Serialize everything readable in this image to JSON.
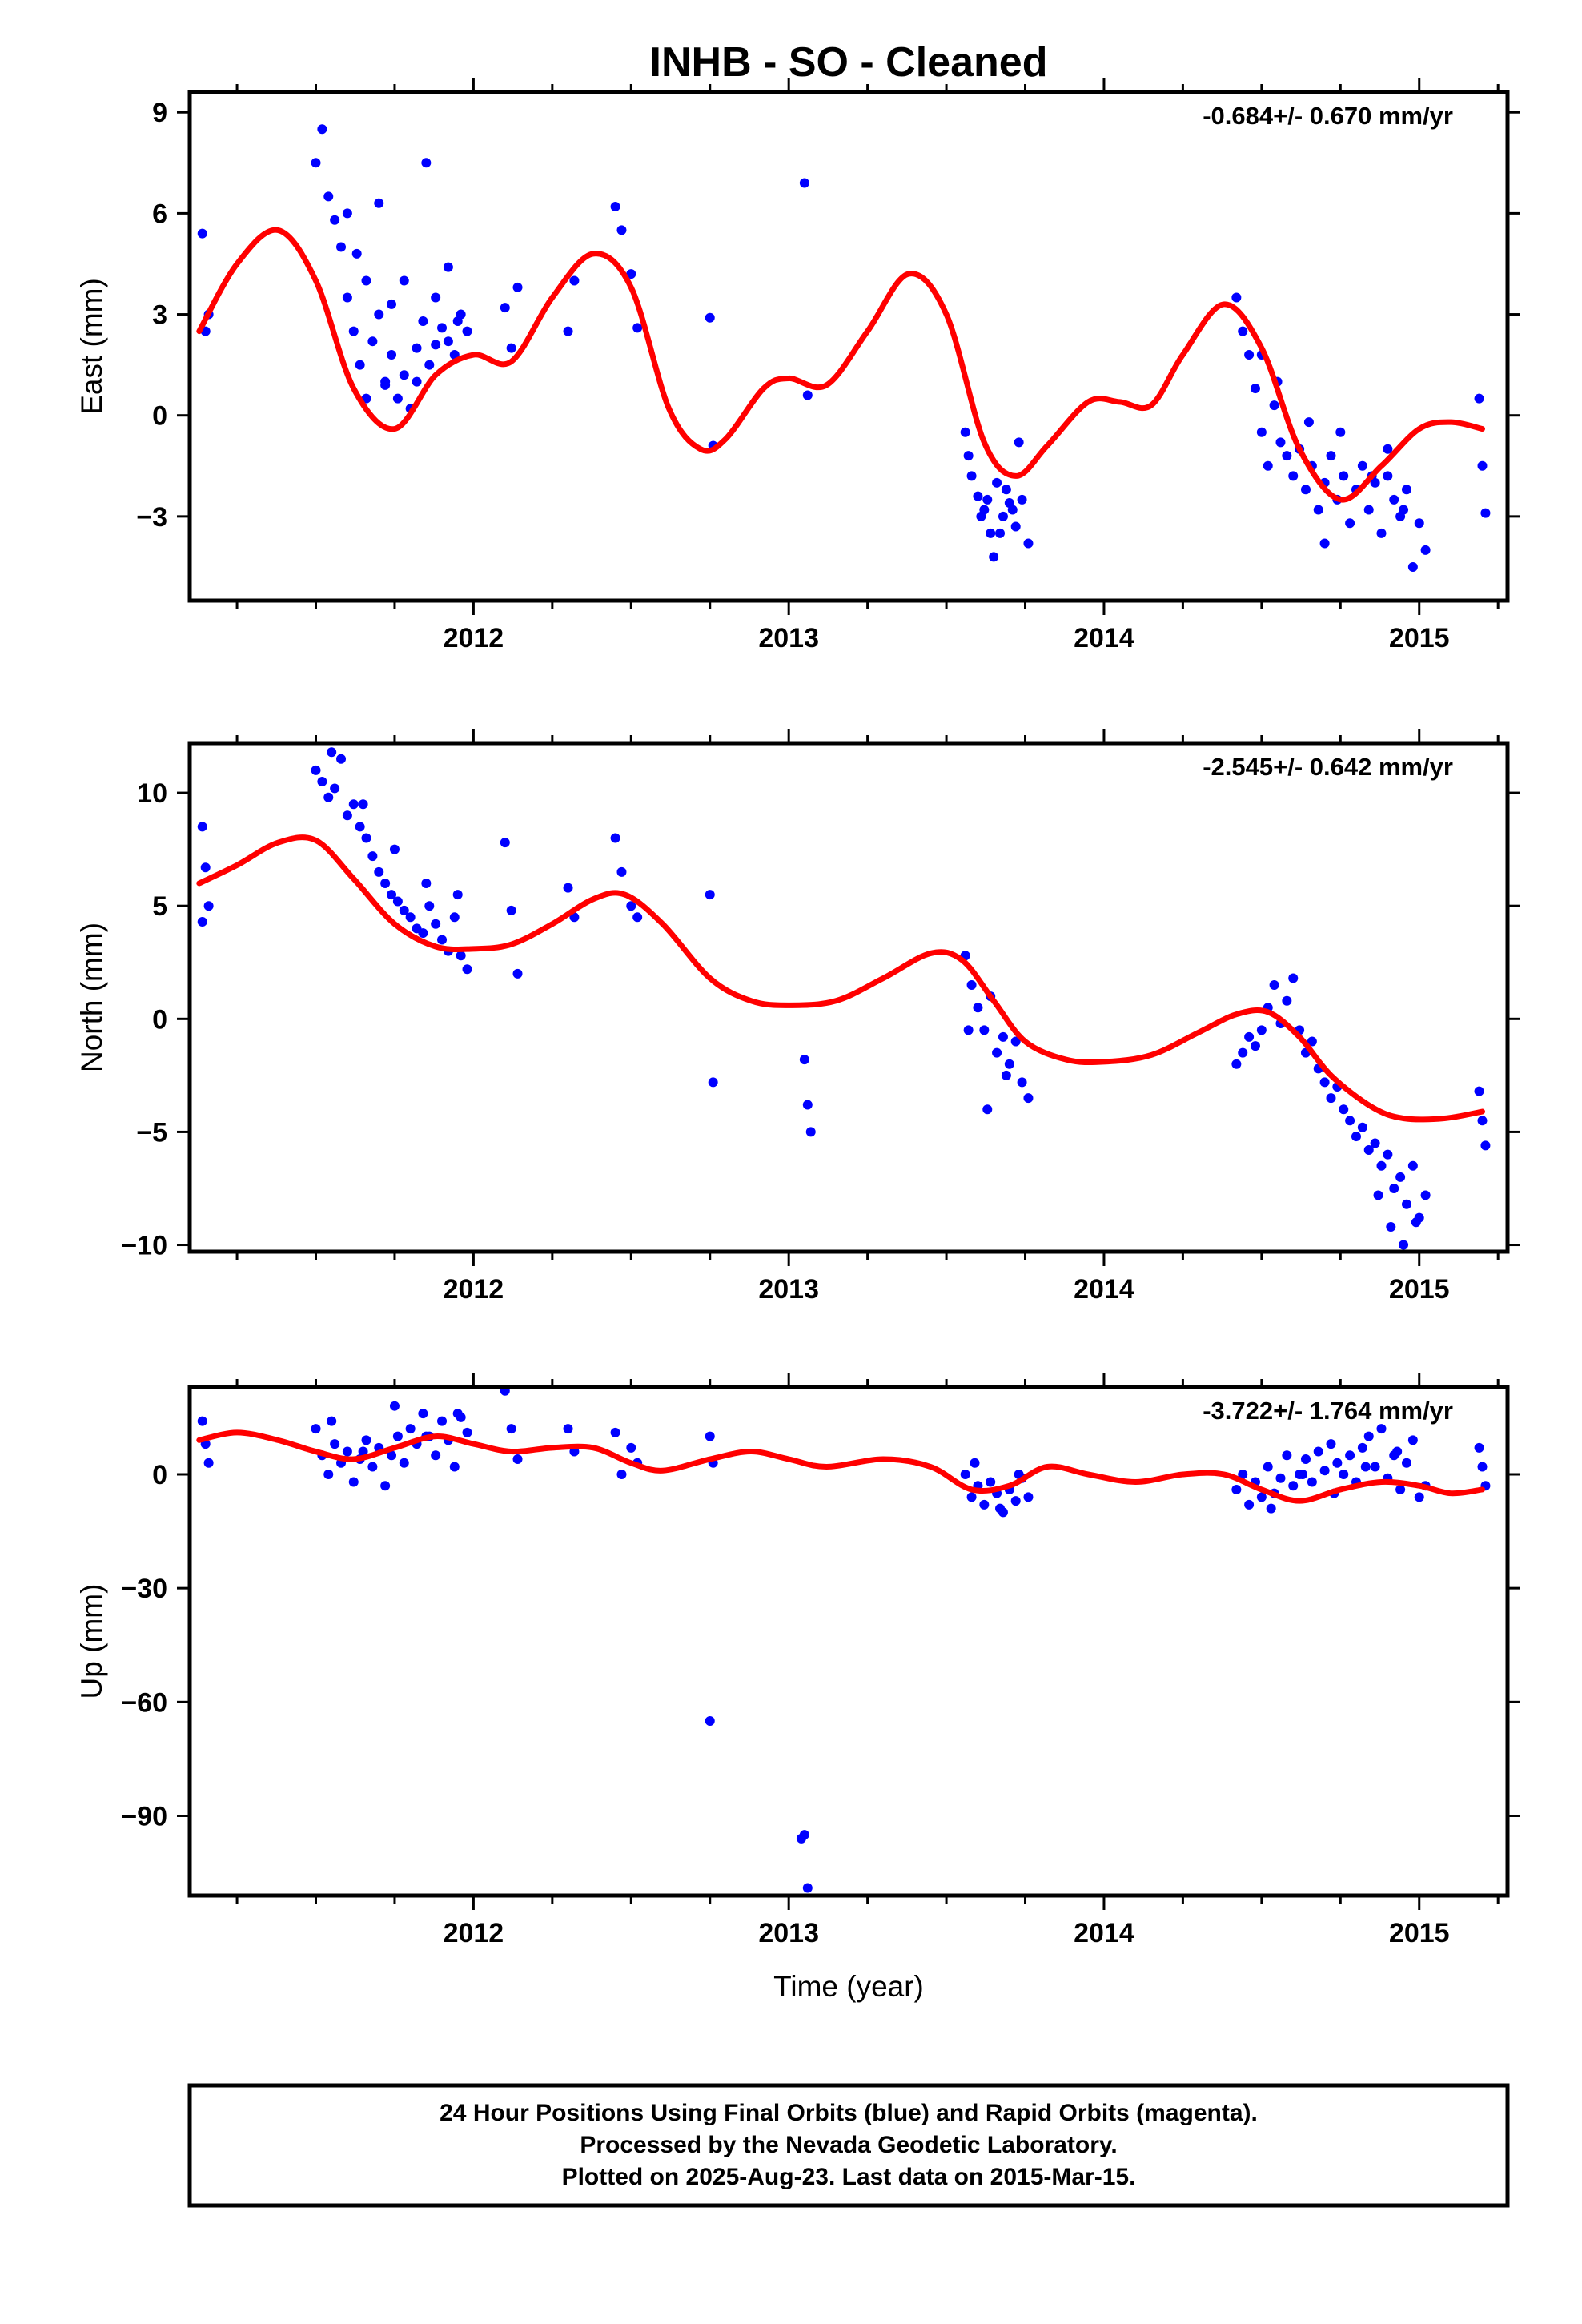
{
  "title": "INHB  - SO - Cleaned",
  "colors": {
    "data": "#0000ff",
    "model": "#ff0000",
    "frame": "#000000"
  },
  "xlabel": "Time (year)",
  "footer": [
    "24 Hour Positions Using Final Orbits (blue) and Rapid Orbits (magenta).",
    "Processed by the Nevada Geodetic Laboratory.",
    "Plotted on 2025-Aug-23. Last data on 2015-Mar-15."
  ],
  "chart_data": [
    {
      "type": "scatter",
      "ylabel": "East (mm)",
      "rate": "-0.684+/- 0.670 mm/yr",
      "xlim": [
        2011.1,
        2015.28
      ],
      "ylim": [
        -5.5,
        9.6
      ],
      "xticks": [
        2012,
        2013,
        2014,
        2015
      ],
      "yticks": [
        -3,
        0,
        3,
        6,
        9
      ],
      "ytick_labels": [
        "−3",
        "0",
        "3",
        "6",
        "9"
      ],
      "model": {
        "x": [
          2011.13,
          2011.25,
          2011.38,
          2011.5,
          2011.62,
          2011.75,
          2011.88,
          2012.0,
          2012.12,
          2012.25,
          2012.38,
          2012.5,
          2012.62,
          2012.72,
          2012.8,
          2012.92,
          2013.0,
          2013.12,
          2013.25,
          2013.38,
          2013.5,
          2013.62,
          2013.72,
          2013.82,
          2013.95,
          2014.05,
          2014.15,
          2014.25,
          2014.38,
          2014.5,
          2014.62,
          2014.75,
          2014.88,
          2015.0,
          2015.1,
          2015.2
        ],
        "y": [
          2.5,
          4.5,
          5.5,
          4.0,
          0.8,
          -0.4,
          1.2,
          1.8,
          1.6,
          3.5,
          4.8,
          3.8,
          0.2,
          -1.0,
          -0.7,
          0.8,
          1.1,
          0.9,
          2.5,
          4.2,
          3.0,
          -0.8,
          -1.8,
          -0.9,
          0.4,
          0.4,
          0.3,
          1.8,
          3.3,
          2.0,
          -1.0,
          -2.5,
          -1.5,
          -0.4,
          -0.2,
          -0.4
        ]
      },
      "points": {
        "x": [
          2011.14,
          2011.15,
          2011.16,
          2011.5,
          2011.52,
          2011.54,
          2011.56,
          2011.58,
          2011.6,
          2011.62,
          2011.64,
          2011.66,
          2011.68,
          2011.7,
          2011.72,
          2011.74,
          2011.76,
          2011.78,
          2011.8,
          2011.82,
          2011.84,
          2011.86,
          2011.88,
          2011.9,
          2011.92,
          2011.94,
          2011.96,
          2011.98,
          2011.72,
          2011.78,
          2011.85,
          2011.63,
          2011.7,
          2011.92,
          2011.6,
          2011.66,
          2011.74,
          2011.82,
          2011.88,
          2011.95,
          2012.1,
          2012.12,
          2012.14,
          2012.3,
          2012.32,
          2012.45,
          2012.47,
          2012.5,
          2012.52,
          2012.75,
          2012.76,
          2013.05,
          2013.06,
          2013.56,
          2013.58,
          2013.6,
          2013.62,
          2013.64,
          2013.66,
          2013.68,
          2013.7,
          2013.72,
          2013.74,
          2013.76,
          2013.57,
          2013.61,
          2013.65,
          2013.69,
          2013.73,
          2013.63,
          2013.67,
          2013.71,
          2014.42,
          2014.44,
          2014.46,
          2014.48,
          2014.5,
          2014.52,
          2014.54,
          2014.56,
          2014.58,
          2014.6,
          2014.62,
          2014.64,
          2014.66,
          2014.68,
          2014.7,
          2014.72,
          2014.74,
          2014.76,
          2014.78,
          2014.8,
          2014.82,
          2014.84,
          2014.86,
          2014.88,
          2014.9,
          2014.92,
          2014.94,
          2014.96,
          2014.98,
          2015.0,
          2015.02,
          2014.55,
          2014.65,
          2014.75,
          2014.85,
          2014.95,
          2014.5,
          2014.7,
          2014.9,
          2015.19,
          2015.2,
          2015.21
        ],
        "y": [
          5.4,
          2.5,
          3.0,
          7.5,
          8.5,
          6.5,
          5.8,
          5.0,
          3.5,
          2.5,
          1.5,
          0.5,
          2.2,
          3.0,
          1.0,
          1.8,
          0.5,
          1.2,
          0.2,
          2.0,
          2.8,
          1.5,
          3.5,
          2.6,
          2.2,
          1.8,
          3.0,
          2.5,
          0.9,
          4.0,
          7.5,
          4.8,
          6.3,
          4.4,
          6.0,
          4.0,
          3.3,
          1.0,
          2.1,
          2.8,
          3.2,
          2.0,
          3.8,
          2.5,
          4.0,
          6.2,
          5.5,
          4.2,
          2.6,
          2.9,
          -0.9,
          6.9,
          0.6,
          -0.5,
          -1.8,
          -2.4,
          -2.8,
          -3.5,
          -2.0,
          -3.0,
          -2.6,
          -3.3,
          -2.5,
          -3.8,
          -1.2,
          -3.0,
          -4.2,
          -2.2,
          -0.8,
          -2.5,
          -3.5,
          -2.8,
          3.5,
          2.5,
          1.8,
          0.8,
          -0.5,
          -1.5,
          0.3,
          -0.8,
          -1.2,
          -1.8,
          -1.0,
          -2.2,
          -1.5,
          -2.8,
          -2.0,
          -1.2,
          -2.5,
          -1.8,
          -3.2,
          -2.2,
          -1.5,
          -2.8,
          -2.0,
          -3.5,
          -1.8,
          -2.5,
          -3.0,
          -2.2,
          -4.5,
          -3.2,
          -4.0,
          1.0,
          -0.2,
          -0.5,
          -1.8,
          -2.8,
          1.8,
          -3.8,
          -1.0,
          0.5,
          -1.5,
          -2.9
        ]
      }
    },
    {
      "type": "scatter",
      "ylabel": "North (mm)",
      "rate": "-2.545+/- 0.642 mm/yr",
      "xlim": [
        2011.1,
        2015.28
      ],
      "ylim": [
        -10.3,
        12.2
      ],
      "xticks": [
        2012,
        2013,
        2014,
        2015
      ],
      "yticks": [
        -10,
        -5,
        0,
        5,
        10
      ],
      "ytick_labels": [
        "−10",
        "−5",
        "0",
        "5",
        "10"
      ],
      "model": {
        "x": [
          2011.13,
          2011.25,
          2011.38,
          2011.5,
          2011.62,
          2011.75,
          2011.88,
          2012.0,
          2012.12,
          2012.25,
          2012.38,
          2012.48,
          2012.6,
          2012.75,
          2012.88,
          2013.0,
          2013.15,
          2013.3,
          2013.45,
          2013.55,
          2013.65,
          2013.75,
          2013.88,
          2014.0,
          2014.15,
          2014.3,
          2014.42,
          2014.52,
          2014.62,
          2014.72,
          2014.85,
          2014.95,
          2015.08,
          2015.2
        ],
        "y": [
          6.0,
          6.8,
          7.8,
          7.9,
          6.2,
          4.2,
          3.2,
          3.1,
          3.3,
          4.2,
          5.3,
          5.5,
          4.2,
          1.8,
          0.8,
          0.6,
          0.8,
          1.8,
          2.9,
          2.6,
          0.8,
          -1.0,
          -1.8,
          -1.9,
          -1.6,
          -0.6,
          0.2,
          0.3,
          -0.8,
          -2.5,
          -3.9,
          -4.4,
          -4.4,
          -4.1
        ]
      },
      "points": {
        "x": [
          2011.14,
          2011.15,
          2011.16,
          2011.14,
          2011.5,
          2011.52,
          2011.54,
          2011.56,
          2011.58,
          2011.6,
          2011.62,
          2011.64,
          2011.66,
          2011.68,
          2011.7,
          2011.72,
          2011.74,
          2011.76,
          2011.78,
          2011.8,
          2011.82,
          2011.84,
          2011.86,
          2011.88,
          2011.9,
          2011.92,
          2011.94,
          2011.96,
          2011.98,
          2011.55,
          2011.65,
          2011.75,
          2011.85,
          2011.95,
          2012.1,
          2012.12,
          2012.14,
          2012.3,
          2012.32,
          2012.45,
          2012.47,
          2012.5,
          2012.52,
          2012.75,
          2012.76,
          2013.05,
          2013.06,
          2013.07,
          2013.56,
          2013.58,
          2013.6,
          2013.62,
          2013.64,
          2013.66,
          2013.68,
          2013.7,
          2013.72,
          2013.74,
          2013.76,
          2013.57,
          2013.63,
          2013.69,
          2014.42,
          2014.44,
          2014.46,
          2014.48,
          2014.5,
          2014.52,
          2014.54,
          2014.56,
          2014.58,
          2014.6,
          2014.62,
          2014.64,
          2014.66,
          2014.68,
          2014.7,
          2014.72,
          2014.74,
          2014.76,
          2014.78,
          2014.8,
          2014.82,
          2014.84,
          2014.86,
          2014.88,
          2014.9,
          2014.92,
          2014.94,
          2014.96,
          2014.98,
          2015.0,
          2015.02,
          2014.87,
          2014.91,
          2014.95,
          2014.99,
          2015.19,
          2015.2,
          2015.21
        ],
        "y": [
          8.5,
          6.7,
          5.0,
          4.3,
          11.0,
          10.5,
          9.8,
          10.2,
          11.5,
          9.0,
          9.5,
          8.5,
          8.0,
          7.2,
          6.5,
          6.0,
          5.5,
          5.2,
          4.8,
          4.5,
          4.0,
          3.8,
          5.0,
          4.2,
          3.5,
          3.0,
          4.5,
          2.8,
          2.2,
          11.8,
          9.5,
          7.5,
          6.0,
          5.5,
          7.8,
          4.8,
          2.0,
          5.8,
          4.5,
          8.0,
          6.5,
          5.0,
          4.5,
          5.5,
          -2.8,
          -1.8,
          -3.8,
          -5.0,
          2.8,
          1.5,
          0.5,
          -0.5,
          1.0,
          -1.5,
          -0.8,
          -2.0,
          -1.0,
          -2.8,
          -3.5,
          -0.5,
          -4.0,
          -2.5,
          -2.0,
          -1.5,
          -0.8,
          -1.2,
          -0.5,
          0.5,
          1.5,
          -0.2,
          0.8,
          1.8,
          -0.5,
          -1.5,
          -1.0,
          -2.2,
          -2.8,
          -3.5,
          -3.0,
          -4.0,
          -4.5,
          -5.2,
          -4.8,
          -5.8,
          -5.5,
          -6.5,
          -6.0,
          -7.5,
          -7.0,
          -8.2,
          -6.5,
          -8.8,
          -7.8,
          -7.8,
          -9.2,
          -10.0,
          -9.0,
          -3.2,
          -4.5,
          -5.6
        ]
      }
    },
    {
      "type": "scatter",
      "ylabel": "Up (mm)",
      "rate": "-3.722+/- 1.764 mm/yr",
      "xlim": [
        2011.1,
        2015.28
      ],
      "ylim": [
        -111,
        23
      ],
      "xticks": [
        2012,
        2013,
        2014,
        2015
      ],
      "yticks": [
        -90,
        -60,
        -30,
        0
      ],
      "ytick_labels": [
        "−90",
        "−60",
        "−30",
        "0"
      ],
      "model": {
        "x": [
          2011.13,
          2011.25,
          2011.38,
          2011.5,
          2011.62,
          2011.75,
          2011.88,
          2012.0,
          2012.12,
          2012.25,
          2012.38,
          2012.5,
          2012.6,
          2012.75,
          2012.88,
          2013.0,
          2013.12,
          2013.3,
          2013.45,
          2013.58,
          2013.7,
          2013.82,
          2013.95,
          2014.1,
          2014.25,
          2014.38,
          2014.5,
          2014.62,
          2014.75,
          2014.88,
          2015.0,
          2015.1,
          2015.2
        ],
        "y": [
          9,
          11,
          9,
          6,
          4,
          7,
          10,
          8,
          6,
          7,
          7,
          3,
          1,
          4,
          6,
          4,
          2,
          4,
          2,
          -4,
          -3,
          2,
          0,
          -2,
          0,
          0,
          -4,
          -7,
          -4,
          -2,
          -3,
          -5,
          -4
        ]
      },
      "points": {
        "x": [
          2011.14,
          2011.15,
          2011.16,
          2011.5,
          2011.52,
          2011.54,
          2011.56,
          2011.58,
          2011.6,
          2011.62,
          2011.64,
          2011.66,
          2011.68,
          2011.7,
          2011.72,
          2011.74,
          2011.76,
          2011.78,
          2011.8,
          2011.82,
          2011.84,
          2011.86,
          2011.88,
          2011.9,
          2011.92,
          2011.94,
          2011.96,
          2011.98,
          2011.55,
          2011.65,
          2011.75,
          2011.85,
          2011.95,
          2012.1,
          2012.12,
          2012.14,
          2012.3,
          2012.32,
          2012.45,
          2012.47,
          2012.5,
          2012.52,
          2012.75,
          2012.76,
          2012.75,
          2013.05,
          2013.06,
          2013.04,
          2013.56,
          2013.58,
          2013.6,
          2013.62,
          2013.64,
          2013.66,
          2013.68,
          2013.7,
          2013.72,
          2013.74,
          2013.76,
          2013.59,
          2013.67,
          2013.73,
          2014.42,
          2014.44,
          2014.46,
          2014.48,
          2014.5,
          2014.52,
          2014.54,
          2014.56,
          2014.58,
          2014.6,
          2014.62,
          2014.64,
          2014.66,
          2014.68,
          2014.7,
          2014.72,
          2014.74,
          2014.76,
          2014.78,
          2014.8,
          2014.82,
          2014.84,
          2014.86,
          2014.88,
          2014.9,
          2014.92,
          2014.94,
          2014.96,
          2014.98,
          2015.0,
          2015.02,
          2014.53,
          2014.63,
          2014.73,
          2014.83,
          2014.93,
          2015.19,
          2015.2,
          2015.21
        ],
        "y": [
          14,
          8,
          3,
          12,
          5,
          0,
          8,
          3,
          6,
          -2,
          4,
          9,
          2,
          7,
          -3,
          5,
          10,
          3,
          12,
          8,
          16,
          10,
          5,
          14,
          9,
          2,
          15,
          11,
          14,
          6,
          18,
          10,
          16,
          22,
          12,
          4,
          12,
          6,
          11,
          0,
          7,
          3,
          10,
          3,
          -65,
          -95,
          -109,
          -96,
          0,
          -6,
          -3,
          -8,
          -2,
          -5,
          -10,
          -4,
          -7,
          -1,
          -6,
          3,
          -9,
          0,
          -4,
          0,
          -8,
          -2,
          -6,
          2,
          -5,
          -1,
          5,
          -3,
          0,
          4,
          -2,
          6,
          1,
          8,
          3,
          0,
          5,
          -2,
          7,
          10,
          2,
          12,
          -1,
          5,
          -4,
          3,
          9,
          -6,
          -3,
          -9,
          0,
          -5,
          2,
          6,
          7,
          2,
          -3
        ]
      }
    }
  ]
}
